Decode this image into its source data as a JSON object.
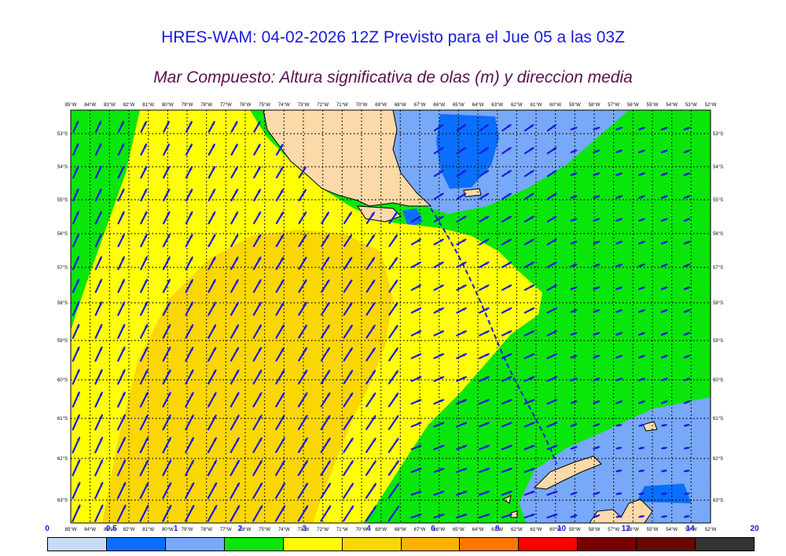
{
  "title": "HRES-WAM: 04-02-2026 12Z Previsto para el Jue 05 a las 03Z",
  "subtitle": "Mar Compuesto: Altura significativa de olas (m) y direccion media",
  "lon_labels": [
    "85°W",
    "84°W",
    "83°W",
    "82°W",
    "81°W",
    "80°W",
    "79°W",
    "78°W",
    "77°W",
    "76°W",
    "75°W",
    "74°W",
    "73°W",
    "72°W",
    "71°W",
    "70°W",
    "69°W",
    "68°W",
    "67°W",
    "66°W",
    "65°W",
    "64°W",
    "63°W",
    "62°W",
    "61°W",
    "60°W",
    "59°W",
    "58°W",
    "57°W",
    "56°W",
    "55°W",
    "54°W",
    "53°W",
    "52°W"
  ],
  "lat_labels": [
    "53°S",
    "54°S",
    "55°S",
    "56°S",
    "57°S",
    "58°S",
    "59°S",
    "60°S",
    "61°S",
    "62°S",
    "63°S"
  ],
  "colorbar": {
    "labels": [
      "0",
      "0.5",
      "1",
      "2",
      "3",
      "4",
      "6",
      "8",
      "10",
      "12",
      "14",
      "20"
    ],
    "colors": [
      "#c8dcf5",
      "#0a6eff",
      "#78a8f8",
      "#0ae60a",
      "#ffff00",
      "#fad700",
      "#fab400",
      "#fa7800",
      "#ff0000",
      "#780000",
      "#640a00",
      "#333333"
    ]
  },
  "colors": {
    "land": "#fcd9a8",
    "grid": "#000000",
    "arrow": "#1a1ae0",
    "track": "#1a1ae0"
  }
}
